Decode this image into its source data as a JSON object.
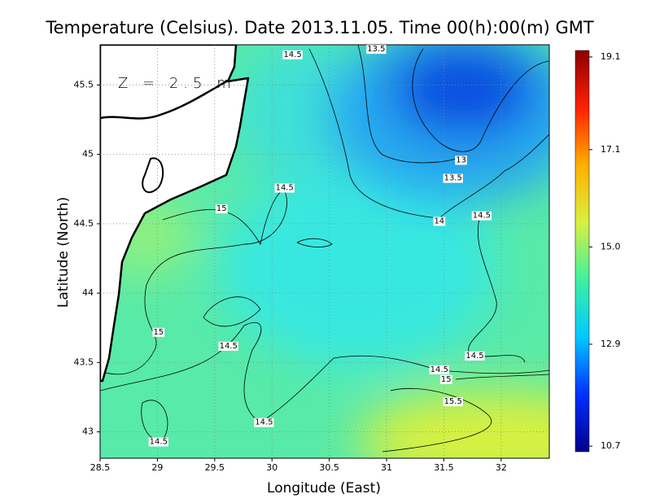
{
  "map": {
    "title": "Temperature (Celsius). Date 2013.11.05. Time 00(h):00(m)  GMT",
    "annotation": "Z = 2.5 m",
    "x_label": "Longitude (East)",
    "y_label": "Latitude (North)",
    "xlim": [
      28.5,
      32.42
    ],
    "ylim": [
      42.81,
      45.79
    ],
    "xticks": [
      28.5,
      29,
      29.5,
      30,
      30.5,
      31,
      31.5,
      32
    ],
    "yticks": [
      43,
      43.5,
      44,
      44.5,
      45,
      45.5
    ],
    "grid": true,
    "colorbar": {
      "lim": [
        10.58,
        19.24
      ],
      "ticks": [
        10.7,
        12.9,
        {
          "value": 15,
          "label": "15.0"
        },
        17.1,
        19.1
      ],
      "colormap": [
        "#00008c",
        "#0030ff",
        "#00c8ff",
        "#40f0a0",
        "#d8f040",
        "#ffb000",
        "#ff2000",
        "#8c0000"
      ]
    },
    "contour_labels": [
      {
        "value": 14.5,
        "lon": 30.18,
        "lat": 45.72
      },
      {
        "value": 13.5,
        "lon": 30.91,
        "lat": 45.76
      },
      {
        "value": 13,
        "lon": 31.65,
        "lat": 44.96
      },
      {
        "value": 13.5,
        "lon": 31.58,
        "lat": 44.83
      },
      {
        "value": 14.5,
        "lon": 30.11,
        "lat": 44.76
      },
      {
        "value": 15,
        "lon": 29.56,
        "lat": 44.61
      },
      {
        "value": 14,
        "lon": 31.46,
        "lat": 44.52
      },
      {
        "value": 14.5,
        "lon": 31.83,
        "lat": 44.56
      },
      {
        "value": 15,
        "lon": 29.01,
        "lat": 43.72
      },
      {
        "value": 14.5,
        "lon": 29.62,
        "lat": 43.62
      },
      {
        "value": 14.5,
        "lon": 31.77,
        "lat": 43.55
      },
      {
        "value": 14.5,
        "lon": 31.46,
        "lat": 43.45
      },
      {
        "value": 15,
        "lon": 31.52,
        "lat": 43.38
      },
      {
        "value": 15.5,
        "lon": 31.58,
        "lat": 43.22
      },
      {
        "value": 14.5,
        "lon": 29.93,
        "lat": 43.07
      },
      {
        "value": 14.5,
        "lon": 29.01,
        "lat": 42.93
      }
    ]
  }
}
